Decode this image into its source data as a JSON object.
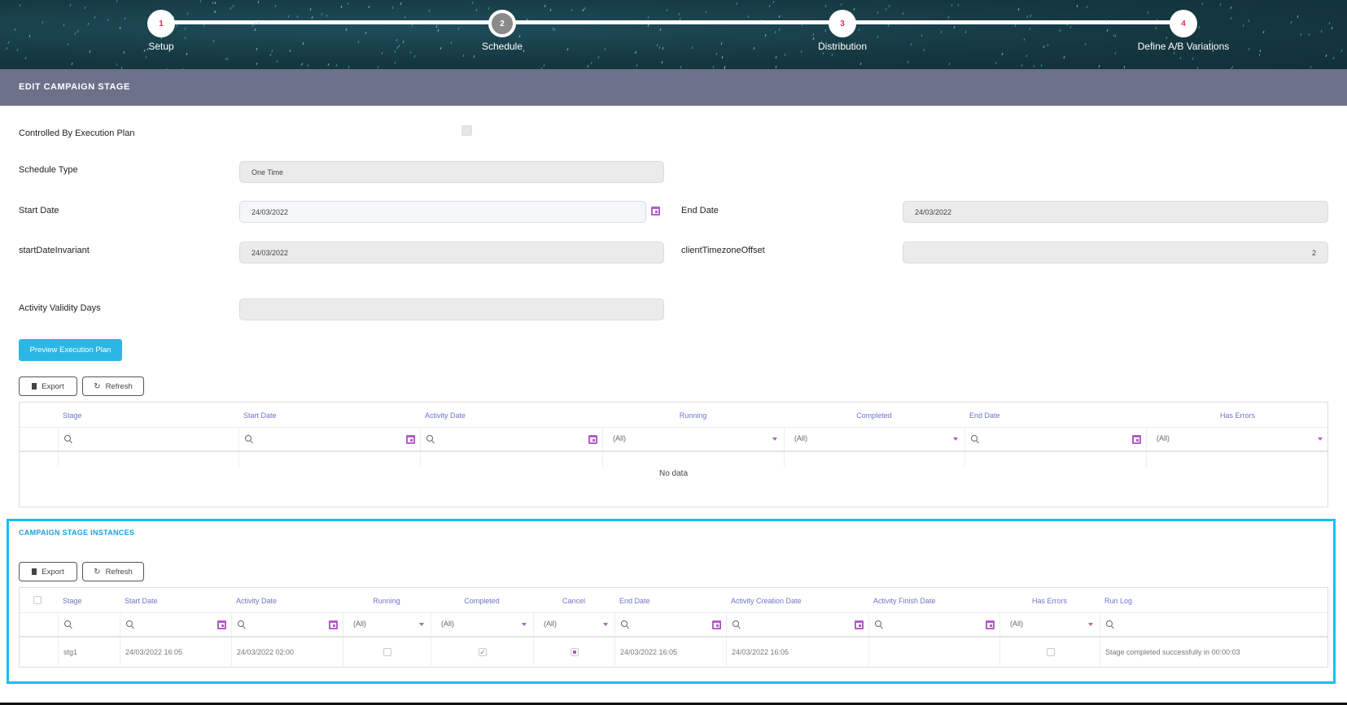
{
  "wizard": {
    "steps": [
      {
        "number": "1",
        "label": "Setup"
      },
      {
        "number": "2",
        "label": "Schedule",
        "active": true
      },
      {
        "number": "3",
        "label": "Distribution"
      },
      {
        "number": "4",
        "label": "Define A/B Variations"
      }
    ]
  },
  "page_title": "EDIT CAMPAIGN STAGE",
  "form": {
    "controlled_label": "Controlled By Execution Plan",
    "controlled_checked": false,
    "schedule_type_label": "Schedule Type",
    "schedule_type_value": "One Time",
    "start_date_label": "Start Date",
    "start_date_value": "24/03/2022",
    "end_date_label": "End Date",
    "end_date_value": "24/03/2022",
    "start_invariant_label": "startDateInvariant",
    "start_invariant_value": "24/03/2022",
    "tz_label": "clientTimezoneOffset",
    "tz_value": "2",
    "validity_label": "Activity Validity Days",
    "validity_value": ""
  },
  "preview_button": "Preview Execution Plan",
  "toolbar": {
    "export": "Export",
    "refresh": "Refresh"
  },
  "plan_grid": {
    "columns": [
      "Stage",
      "Start Date",
      "Activity Date",
      "Running",
      "Completed",
      "End Date",
      "Has Errors"
    ],
    "filter_all": "(All)",
    "empty": "No data"
  },
  "instances": {
    "title": "CAMPAIGN STAGE INSTANCES",
    "columns": [
      "Stage",
      "Start Date",
      "Activity Date",
      "Running",
      "Completed",
      "Cancel",
      "End Date",
      "Activity Creation Date",
      "Activity Finish Date",
      "Has Errors",
      "Run Log"
    ],
    "filter_all": "(All)",
    "rows": [
      {
        "stage": "stg1",
        "start_date": "24/03/2022 16:05",
        "activity_date": "24/03/2022 02:00",
        "running": false,
        "completed": true,
        "cancel": "indeterminate",
        "end_date": "24/03/2022 16:05",
        "activity_creation_date": "24/03/2022 16:05",
        "activity_finish_date": "",
        "has_errors": false,
        "run_log": "Stage completed successfully in 00:00:03"
      }
    ]
  },
  "colors": {
    "accent": "#2bb7e6",
    "title_bar": "#6c7089",
    "header_text": "#6d74c8",
    "calendar_icon": "#b45cc8",
    "step_number": "#e0334f",
    "highlight_border": "#12c0f0"
  }
}
